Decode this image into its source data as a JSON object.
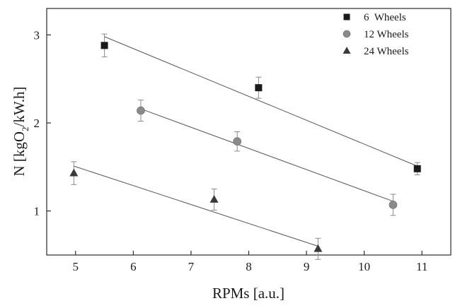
{
  "chart_data": {
    "type": "scatter",
    "xlabel": "RPMs [a.u.]",
    "ylabel_parts": {
      "before": "N [kgO",
      "sub": "2",
      "after": "/kW.h]"
    },
    "xlim": [
      4.5,
      11.5
    ],
    "ylim": [
      0.5,
      3.3
    ],
    "xticks": [
      5,
      6,
      7,
      8,
      9,
      10,
      11
    ],
    "yticks": [
      1,
      2,
      3
    ],
    "grid": false,
    "legend_position": "top-right",
    "series": [
      {
        "name": "6  Wheels",
        "marker": "square",
        "color": "#1a1a1a",
        "points": [
          {
            "x": 5.5,
            "y": 2.88,
            "err": 0.13
          },
          {
            "x": 8.17,
            "y": 2.4,
            "err": 0.12
          },
          {
            "x": 10.92,
            "y": 1.48,
            "err": 0.07
          }
        ],
        "fit": [
          [
            5.5,
            2.98
          ],
          [
            10.92,
            1.51
          ]
        ]
      },
      {
        "name": "12 Wheels",
        "marker": "circle",
        "color": "#8a8a8a",
        "points": [
          {
            "x": 6.13,
            "y": 2.14,
            "err": 0.12
          },
          {
            "x": 7.8,
            "y": 1.79,
            "err": 0.11
          },
          {
            "x": 10.5,
            "y": 1.07,
            "err": 0.12
          }
        ],
        "fit": [
          [
            6.13,
            2.16
          ],
          [
            10.5,
            1.11
          ]
        ]
      },
      {
        "name": "24 Wheels",
        "marker": "triangle",
        "color": "#3a3a3a",
        "points": [
          {
            "x": 4.97,
            "y": 1.43,
            "err": 0.13
          },
          {
            "x": 7.4,
            "y": 1.13,
            "err": 0.12
          },
          {
            "x": 9.2,
            "y": 0.57,
            "err": 0.12
          }
        ],
        "fit": [
          [
            4.97,
            1.51
          ],
          [
            9.2,
            0.6
          ]
        ]
      }
    ]
  }
}
